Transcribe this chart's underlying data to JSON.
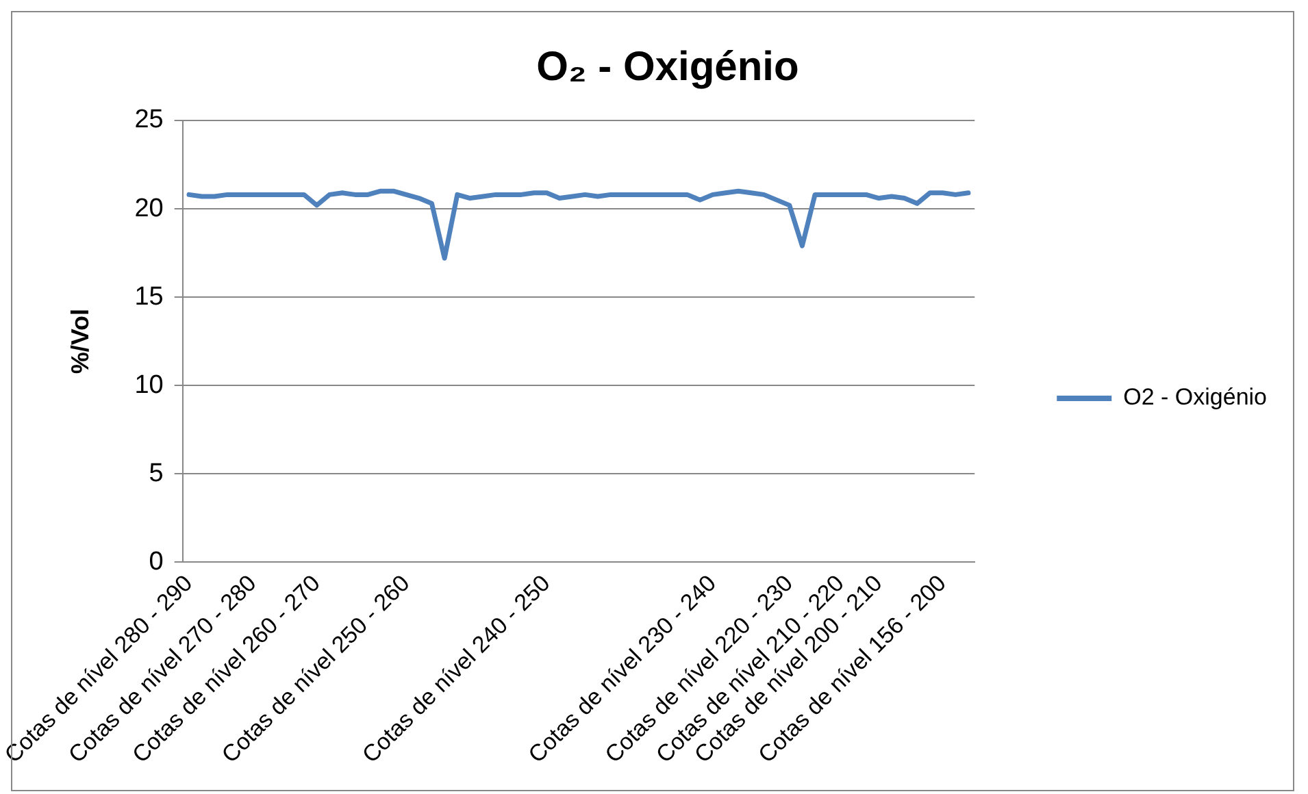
{
  "chart_data": {
    "type": "line",
    "title": "O₂ - Oxigénio",
    "ylabel": "%/Vol",
    "categories": [
      "Cotas de nível 280 - 290",
      null,
      null,
      null,
      null,
      "Cotas de nível 270 - 280",
      null,
      null,
      null,
      null,
      "Cotas de nível 260 - 270",
      null,
      null,
      null,
      null,
      null,
      null,
      "Cotas de nível 250 - 260",
      null,
      null,
      null,
      null,
      null,
      null,
      null,
      null,
      null,
      null,
      "Cotas de nível 240 - 250",
      null,
      null,
      null,
      null,
      null,
      null,
      null,
      null,
      null,
      null,
      null,
      null,
      "Cotas de nível 230 - 240",
      null,
      null,
      null,
      null,
      null,
      "Cotas de nível 220 - 230",
      null,
      null,
      null,
      "Cotas de nível 210 - 220",
      null,
      null,
      "Cotas de nível 200 - 210",
      null,
      null,
      null,
      null,
      "Cotas de nível 156 - 200",
      null,
      null
    ],
    "series": [
      {
        "name": "O2 - Oxigénio",
        "color": "#4f81bd",
        "values": [
          20.8,
          20.7,
          20.7,
          20.8,
          20.8,
          20.8,
          20.8,
          20.8,
          20.8,
          20.8,
          20.2,
          20.8,
          20.9,
          20.8,
          20.8,
          21.0,
          21.0,
          20.8,
          20.6,
          20.3,
          17.2,
          20.8,
          20.6,
          20.7,
          20.8,
          20.8,
          20.8,
          20.9,
          20.9,
          20.6,
          20.7,
          20.8,
          20.7,
          20.8,
          20.8,
          20.8,
          20.8,
          20.8,
          20.8,
          20.8,
          20.5,
          20.8,
          20.9,
          21.0,
          20.9,
          20.8,
          20.5,
          20.2,
          17.9,
          20.8,
          20.8,
          20.8,
          20.8,
          20.8,
          20.6,
          20.7,
          20.6,
          20.3,
          20.9,
          20.9,
          20.8,
          20.9
        ]
      }
    ],
    "ylim": [
      0,
      25
    ],
    "yticks": [
      0,
      5,
      10,
      15,
      20,
      25
    ],
    "grid": "y",
    "legend": "right",
    "marker": "none",
    "line_style": "solid"
  }
}
